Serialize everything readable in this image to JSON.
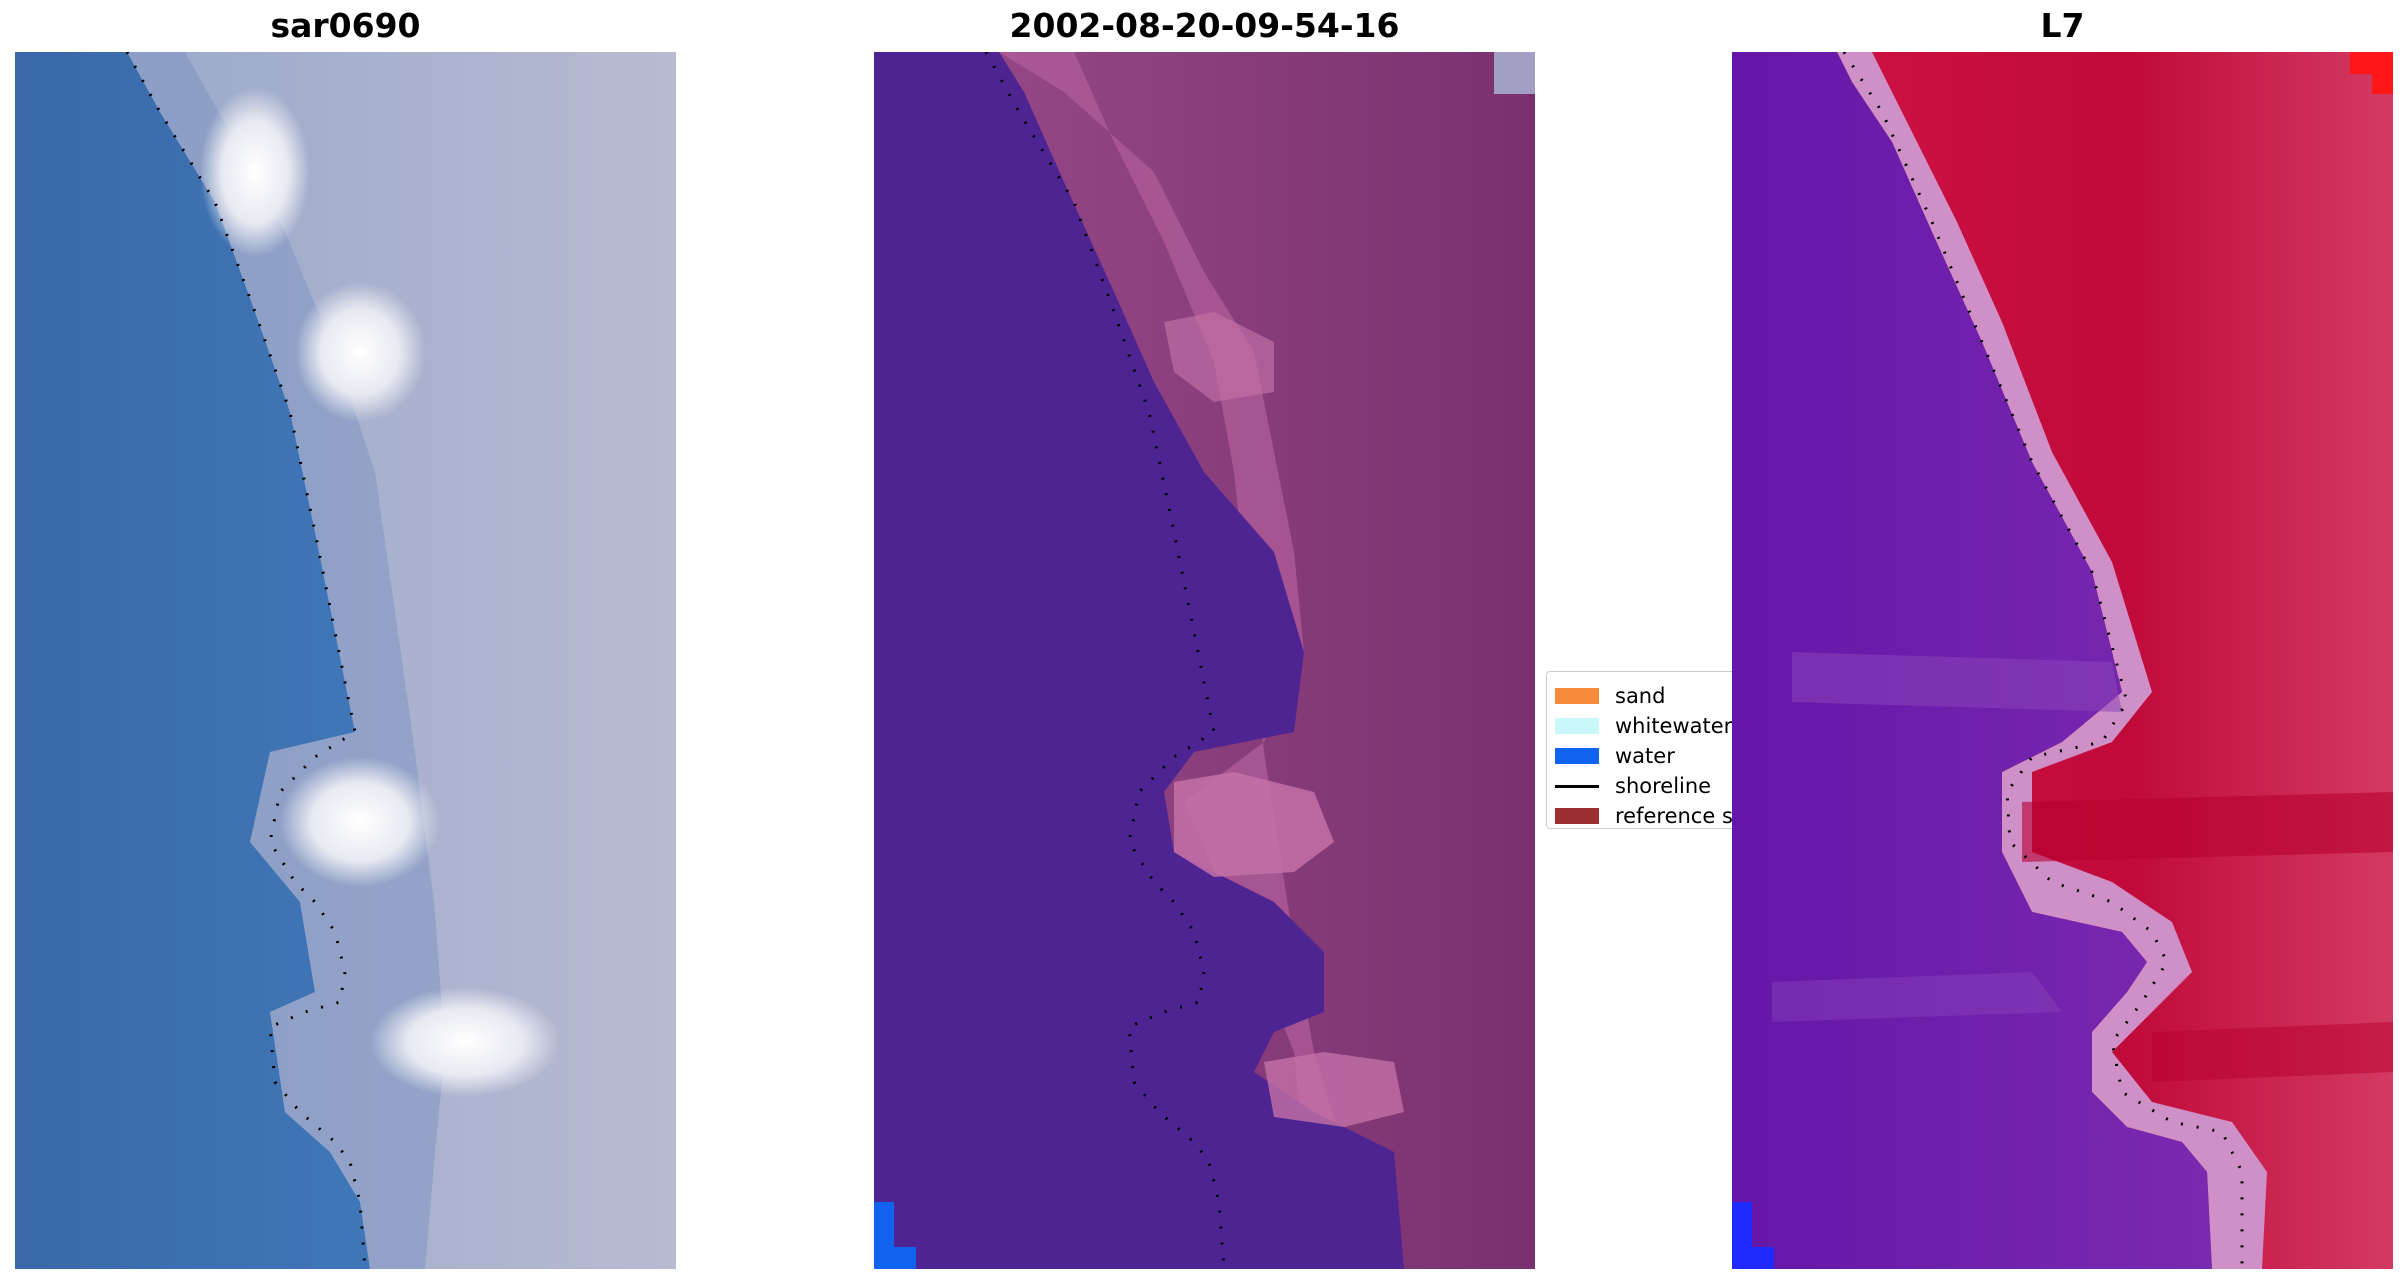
{
  "panels": [
    {
      "title": "sar0690"
    },
    {
      "title": "2002-08-20-09-54-16"
    },
    {
      "title": "L7"
    }
  ],
  "legend": {
    "items": [
      {
        "label": "sand",
        "color": "#f58b3c",
        "kind": "patch"
      },
      {
        "label": "whitewater",
        "color": "#c8f8fa",
        "kind": "patch"
      },
      {
        "label": "water",
        "color": "#1063ee",
        "kind": "patch"
      },
      {
        "label": "shoreline",
        "color": "#000000",
        "kind": "line"
      },
      {
        "label": "reference s",
        "color": "#9b2f32",
        "kind": "patch"
      }
    ]
  },
  "colors": {
    "rgb_water": "#3c6fae",
    "rgb_land": "#aab0cc",
    "rgb_whitewater": "#f2f2f6",
    "class_water": "#4e2493",
    "class_land": "#8a3f7c",
    "class_land_light": "#c471a8",
    "class_corner_water": "#1063ee",
    "mndwi_water": "#6a1faa",
    "mndwi_land": "#c00a3a",
    "mndwi_edge": "#cf8fc7",
    "mndwi_corner": "#ff1616",
    "mndwi_corner_water": "#1f2aff"
  }
}
